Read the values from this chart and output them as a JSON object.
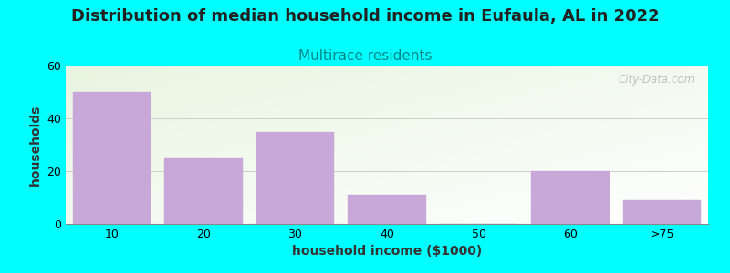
{
  "title": "Distribution of median household income in Eufaula, AL in 2022",
  "subtitle": "Multirace residents",
  "xlabel": "household income ($1000)",
  "ylabel": "households",
  "categories": [
    "10",
    "20",
    "30",
    "40",
    "50",
    "60",
    ">75"
  ],
  "values": [
    50,
    25,
    35,
    11,
    0,
    20,
    9
  ],
  "bar_color": "#c8a8d8",
  "bar_edge_color": "#c8a8d8",
  "background_color": "#00ffff",
  "title_fontsize": 13,
  "subtitle_fontsize": 11,
  "subtitle_color": "#008888",
  "title_color": "#222222",
  "axis_label_fontsize": 10,
  "tick_fontsize": 9,
  "ylim": [
    0,
    60
  ],
  "yticks": [
    0,
    20,
    40,
    60
  ],
  "watermark": "City-Data.com",
  "bar_width": 0.85
}
